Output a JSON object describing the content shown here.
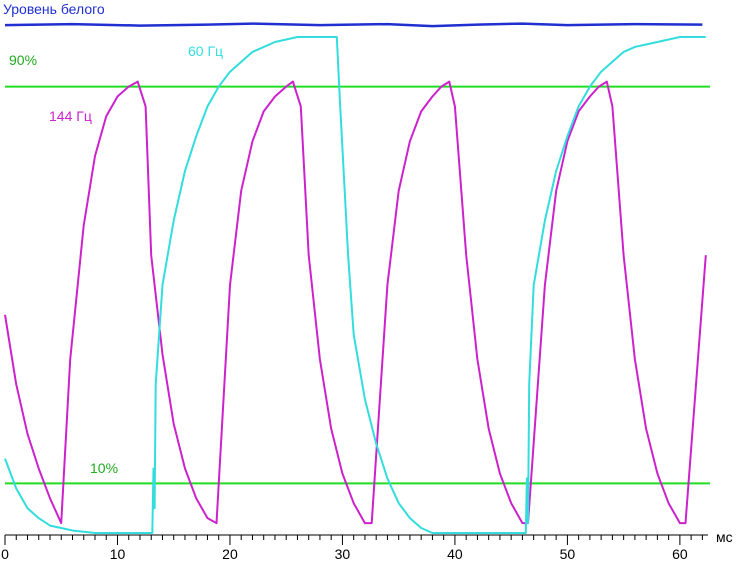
{
  "chart_data": {
    "type": "line",
    "title": "",
    "xlabel": "мс",
    "ylabel": "",
    "xlim": [
      0,
      62.5
    ],
    "ylim": [
      0,
      1.1
    ],
    "grid": false,
    "x_ticks": [
      0,
      10,
      20,
      30,
      40,
      50,
      60
    ],
    "annotations": [
      {
        "text": "Уровень белого",
        "color": "#1f2fd0"
      },
      {
        "text": "90%",
        "color": "#22aa22"
      },
      {
        "text": "10%",
        "color": "#22aa22"
      },
      {
        "text": "144 Гц",
        "color": "#cc22cc"
      },
      {
        "text": "60 Гц",
        "color": "#33dddd"
      }
    ],
    "reference_lines": [
      {
        "name": "90%",
        "y": 0.9,
        "color": "#22dd22"
      },
      {
        "name": "10%",
        "y": 0.1,
        "color": "#22dd22"
      }
    ],
    "series": [
      {
        "name": "Уровень белого",
        "color": "#1f2fd0",
        "x": [
          0,
          6,
          12,
          18,
          22,
          28,
          34,
          38,
          42,
          46,
          50,
          56,
          62
        ],
        "y": [
          1.024,
          1.026,
          1.023,
          1.025,
          1.027,
          1.024,
          1.026,
          1.022,
          1.025,
          1.027,
          1.024,
          1.026,
          1.025
        ]
      },
      {
        "name": "144 Гц",
        "color": "#cc22cc",
        "x": [
          0,
          1,
          2,
          3,
          4,
          5,
          5.8,
          7,
          8,
          9,
          10,
          11,
          11.8,
          12.5,
          13,
          14,
          15,
          16,
          17,
          18,
          18.8,
          20,
          21,
          22,
          23,
          24,
          25,
          25.6,
          26.3,
          27,
          28,
          29,
          30,
          31,
          32,
          32.6,
          34,
          35,
          36,
          37,
          38,
          38.8,
          39.5,
          40,
          41,
          42,
          43,
          44,
          45,
          46,
          46.5,
          48,
          49,
          50,
          51,
          52,
          52.8,
          53.5,
          54,
          55,
          56,
          57,
          58,
          59,
          60,
          60.5,
          62.3
        ],
        "y": [
          0.44,
          0.3,
          0.2,
          0.13,
          0.07,
          0.02,
          0.35,
          0.62,
          0.76,
          0.84,
          0.88,
          0.9,
          0.91,
          0.86,
          0.56,
          0.36,
          0.22,
          0.13,
          0.07,
          0.03,
          0.02,
          0.5,
          0.69,
          0.79,
          0.85,
          0.88,
          0.9,
          0.91,
          0.86,
          0.56,
          0.35,
          0.21,
          0.12,
          0.06,
          0.02,
          0.02,
          0.5,
          0.69,
          0.79,
          0.85,
          0.88,
          0.9,
          0.91,
          0.86,
          0.56,
          0.35,
          0.21,
          0.12,
          0.06,
          0.02,
          0.02,
          0.5,
          0.69,
          0.79,
          0.85,
          0.88,
          0.9,
          0.91,
          0.86,
          0.56,
          0.35,
          0.21,
          0.12,
          0.06,
          0.02,
          0.02,
          0.56
        ]
      },
      {
        "name": "60 Гц",
        "color": "#33dddd",
        "x": [
          0,
          1,
          2,
          3,
          4,
          5,
          6,
          8,
          10,
          12,
          13.1,
          13.2,
          13.3,
          13.4,
          14,
          15,
          16,
          17,
          18,
          19,
          20,
          22,
          24,
          26,
          28,
          29.5,
          29.8,
          30.5,
          31,
          32,
          33,
          34,
          35,
          36,
          37,
          38,
          40,
          42,
          44,
          46.3,
          46.4,
          46.5,
          46.6,
          47,
          48,
          49,
          50,
          51,
          52,
          53,
          54,
          55,
          56,
          58,
          60,
          62.3
        ],
        "y": [
          0.15,
          0.09,
          0.05,
          0.03,
          0.015,
          0.01,
          0.005,
          0.0,
          0.0,
          0.0,
          0.0,
          0.13,
          0.05,
          0.3,
          0.5,
          0.63,
          0.73,
          0.8,
          0.86,
          0.9,
          0.93,
          0.97,
          0.99,
          1.0,
          1.0,
          1.0,
          0.86,
          0.56,
          0.4,
          0.27,
          0.18,
          0.11,
          0.06,
          0.03,
          0.01,
          0.0,
          0.0,
          0.0,
          0.0,
          0.0,
          0.11,
          0.02,
          0.3,
          0.5,
          0.63,
          0.73,
          0.8,
          0.86,
          0.9,
          0.93,
          0.95,
          0.97,
          0.98,
          0.99,
          1.0,
          1.0
        ]
      }
    ]
  }
}
